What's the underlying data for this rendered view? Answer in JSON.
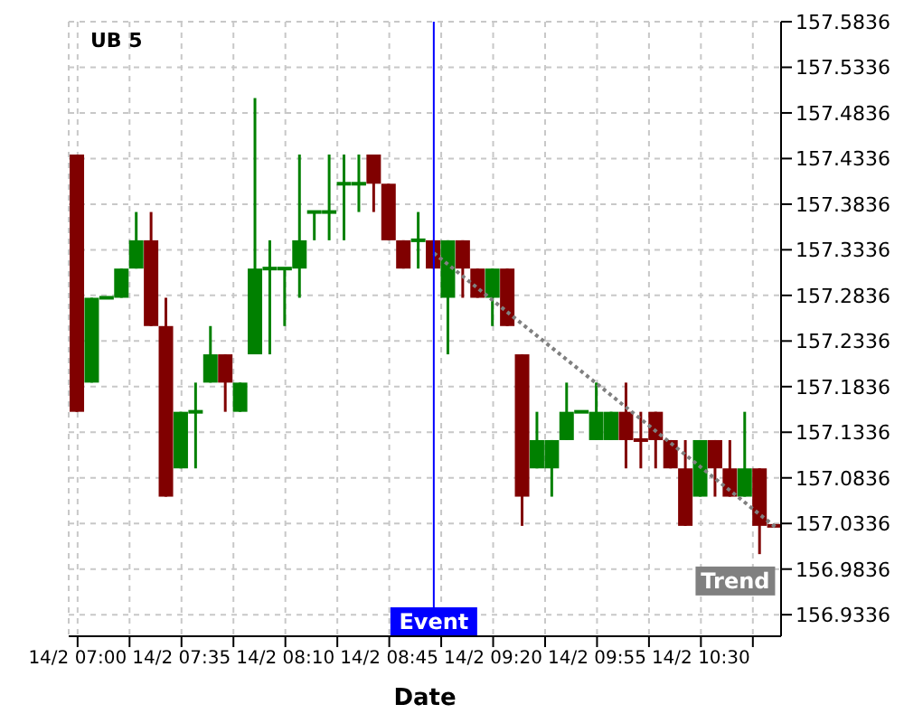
{
  "chart_data": {
    "type": "candlestick",
    "title": "UB 5",
    "xlabel": "Date",
    "x": [
      "--02-14T07:00",
      "--02-14T07:05",
      "--02-14T07:10",
      "--02-14T07:15",
      "--02-14T07:20",
      "--02-14T07:25",
      "--02-14T07:30",
      "--02-14T07:35",
      "--02-14T07:40",
      "--02-14T07:45",
      "--02-14T07:50",
      "--02-14T07:55",
      "--02-14T08:00",
      "--02-14T08:05",
      "--02-14T08:10",
      "--02-14T08:15",
      "--02-14T08:20",
      "--02-14T08:25",
      "--02-14T08:30",
      "--02-14T08:35",
      "--02-14T08:40",
      "--02-14T08:45",
      "--02-14T08:50",
      "--02-14T08:55",
      "--02-14T09:00",
      "--02-14T09:05",
      "--02-14T09:10",
      "--02-14T09:15",
      "--02-14T09:20",
      "--02-14T09:25",
      "--02-14T09:30",
      "--02-14T09:35",
      "--02-14T09:40",
      "--02-14T09:45",
      "--02-14T09:50",
      "--02-14T09:55",
      "--02-14T10:00",
      "--02-14T10:05",
      "--02-14T10:10",
      "--02-14T10:15",
      "--02-14T10:20",
      "--02-14T10:25",
      "--02-14T10:30",
      "--02-14T10:35",
      "--02-14T10:40",
      "--02-14T10:45",
      "--02-14T10:50",
      "--02-14T10:55"
    ],
    "ohlc": [
      [
        157.438,
        157.438,
        157.156,
        157.156
      ],
      [
        157.188,
        157.281,
        157.188,
        157.281
      ],
      [
        157.281,
        157.281,
        157.281,
        157.281
      ],
      [
        157.281,
        157.313,
        157.281,
        157.313
      ],
      [
        157.313,
        157.375,
        157.313,
        157.344
      ],
      [
        157.344,
        157.375,
        157.25,
        157.25
      ],
      [
        157.25,
        157.281,
        157.063,
        157.063
      ],
      [
        157.094,
        157.156,
        157.094,
        157.156
      ],
      [
        157.156,
        157.188,
        157.094,
        157.156
      ],
      [
        157.188,
        157.25,
        157.188,
        157.219
      ],
      [
        157.219,
        157.219,
        157.156,
        157.188
      ],
      [
        157.156,
        157.188,
        157.156,
        157.188
      ],
      [
        157.219,
        157.5,
        157.219,
        157.313
      ],
      [
        157.313,
        157.344,
        157.219,
        157.313
      ],
      [
        157.313,
        157.313,
        157.25,
        157.313
      ],
      [
        157.313,
        157.438,
        157.281,
        157.344
      ],
      [
        157.375,
        157.375,
        157.344,
        157.375
      ],
      [
        157.375,
        157.438,
        157.344,
        157.375
      ],
      [
        157.406,
        157.438,
        157.344,
        157.406
      ],
      [
        157.406,
        157.438,
        157.375,
        157.406
      ],
      [
        157.438,
        157.438,
        157.375,
        157.406
      ],
      [
        157.406,
        157.406,
        157.344,
        157.344
      ],
      [
        157.344,
        157.344,
        157.313,
        157.313
      ],
      [
        157.344,
        157.375,
        157.313,
        157.344
      ],
      [
        157.344,
        157.344,
        157.313,
        157.313
      ],
      [
        157.281,
        157.344,
        157.219,
        157.344
      ],
      [
        157.344,
        157.344,
        157.281,
        157.313
      ],
      [
        157.313,
        157.313,
        157.281,
        157.281
      ],
      [
        157.281,
        157.313,
        157.25,
        157.313
      ],
      [
        157.313,
        157.313,
        157.25,
        157.25
      ],
      [
        157.219,
        157.219,
        157.031,
        157.063
      ],
      [
        157.094,
        157.156,
        157.094,
        157.125
      ],
      [
        157.094,
        157.125,
        157.063,
        157.125
      ],
      [
        157.125,
        157.188,
        157.125,
        157.156
      ],
      [
        157.156,
        157.156,
        157.156,
        157.156
      ],
      [
        157.125,
        157.188,
        157.125,
        157.156
      ],
      [
        157.125,
        157.156,
        157.125,
        157.156
      ],
      [
        157.156,
        157.188,
        157.094,
        157.125
      ],
      [
        157.125,
        157.156,
        157.094,
        157.125
      ],
      [
        157.156,
        157.156,
        157.094,
        157.125
      ],
      [
        157.125,
        157.125,
        157.094,
        157.094
      ],
      [
        157.094,
        157.125,
        157.031,
        157.031
      ],
      [
        157.063,
        157.125,
        157.063,
        157.125
      ],
      [
        157.125,
        157.125,
        157.063,
        157.094
      ],
      [
        157.094,
        157.125,
        157.063,
        157.063
      ],
      [
        157.063,
        157.156,
        157.063,
        157.094
      ],
      [
        157.094,
        157.094,
        157,
        157.031
      ],
      [
        157.031,
        157.031,
        157.031,
        157.031
      ]
    ],
    "colors": [
      "#800000",
      "#008000",
      "#008000",
      "#008000",
      "#008000",
      "#800000",
      "#800000",
      "#008000",
      "#008000",
      "#008000",
      "#800000",
      "#008000",
      "#008000",
      "#008000",
      "#008000",
      "#008000",
      "#008000",
      "#008000",
      "#008000",
      "#008000",
      "#800000",
      "#800000",
      "#800000",
      "#008000",
      "#800000",
      "#008000",
      "#800000",
      "#800000",
      "#008000",
      "#800000",
      "#800000",
      "#008000",
      "#008000",
      "#008000",
      "#008000",
      "#008000",
      "#008000",
      "#800000",
      "#800000",
      "#800000",
      "#800000",
      "#800000",
      "#008000",
      "#800000",
      "#800000",
      "#008000",
      "#800000",
      "#800000"
    ],
    "series": [
      {
        "type": "line",
        "name": "Trend",
        "color": "#808080",
        "line_style": "dotted",
        "x": [
          "--02-14T09:00",
          "--02-14T10:55"
        ],
        "values": [
          157.33,
          157.03
        ]
      }
    ],
    "ref_lines": [
      {
        "axis": "x",
        "value": "--02-14T09:00",
        "label": "Event",
        "color": "#0000ff"
      }
    ],
    "xlim": [
      "--02-14T06:57",
      "--02-14T10:57"
    ],
    "xticks": [
      {
        "value": "--02-14T07:00",
        "label": "14/2 07:00"
      },
      {
        "value": "--02-14T07:17:30",
        "label": null
      },
      {
        "value": "--02-14T07:35",
        "label": "14/2 07:35"
      },
      {
        "value": "--02-14T07:52:30",
        "label": null
      },
      {
        "value": "--02-14T08:10",
        "label": "14/2 08:10"
      },
      {
        "value": "--02-14T08:27:30",
        "label": null
      },
      {
        "value": "--02-14T08:45",
        "label": "14/2 08:45"
      },
      {
        "value": "--02-14T09:02:30",
        "label": null
      },
      {
        "value": "--02-14T09:20",
        "label": "14/2 09:20"
      },
      {
        "value": "--02-14T09:37:30",
        "label": null
      },
      {
        "value": "--02-14T09:55",
        "label": "14/2 09:55"
      },
      {
        "value": "--02-14T10:12:30",
        "label": null
      },
      {
        "value": "--02-14T10:30",
        "label": "14/2 10:30"
      },
      {
        "value": "--02-14T10:47:30",
        "label": null
      }
    ],
    "ylim": [
      156.91,
      157.5836
    ],
    "yticks": [
      157.5836,
      157.5336,
      157.4836,
      157.4336,
      157.3836,
      157.3336,
      157.2836,
      157.2336,
      157.1836,
      157.1336,
      157.0836,
      157.0336,
      156.9836,
      156.9336
    ],
    "grid": true
  }
}
